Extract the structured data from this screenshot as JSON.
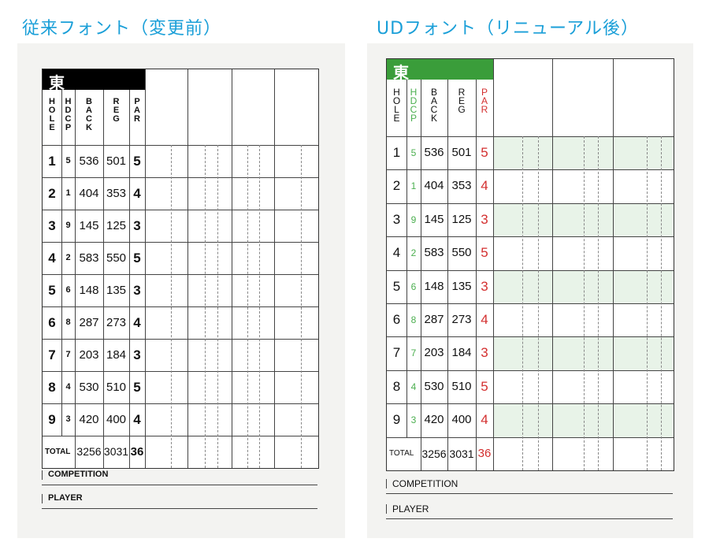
{
  "titles": {
    "left": "従来フォント（変更前）",
    "right": "UDフォント（リニューアル後）"
  },
  "course_label": "東",
  "headers": {
    "hole": "HOLE",
    "hdcp": "HDCP",
    "back": "BACK",
    "reg": "REG",
    "par": "PAR"
  },
  "holes": [
    {
      "hole": "1",
      "hdcp": "5",
      "back": "536",
      "reg": "501",
      "par": "5"
    },
    {
      "hole": "2",
      "hdcp": "1",
      "back": "404",
      "reg": "353",
      "par": "4"
    },
    {
      "hole": "3",
      "hdcp": "9",
      "back": "145",
      "reg": "125",
      "par": "3"
    },
    {
      "hole": "4",
      "hdcp": "2",
      "back": "583",
      "reg": "550",
      "par": "5"
    },
    {
      "hole": "5",
      "hdcp": "6",
      "back": "148",
      "reg": "135",
      "par": "3"
    },
    {
      "hole": "6",
      "hdcp": "8",
      "back": "287",
      "reg": "273",
      "par": "4"
    },
    {
      "hole": "7",
      "hdcp": "7",
      "back": "203",
      "reg": "184",
      "par": "3"
    },
    {
      "hole": "8",
      "hdcp": "4",
      "back": "530",
      "reg": "510",
      "par": "5"
    },
    {
      "hole": "9",
      "hdcp": "3",
      "back": "420",
      "reg": "400",
      "par": "4"
    }
  ],
  "total": {
    "label": "TOTAL",
    "back": "3256",
    "reg": "3031",
    "par": "36"
  },
  "footer": {
    "competition": "COMPETITION",
    "player": "PLAYER"
  },
  "colors": {
    "title_blue": "#1a9fd8",
    "left_header_bg": "#000000",
    "right_header_bg": "#3a9d3a",
    "right_hdcp": "#4caf50",
    "right_par": "#d32f2f",
    "right_row_tint": "#e8f3e8"
  }
}
